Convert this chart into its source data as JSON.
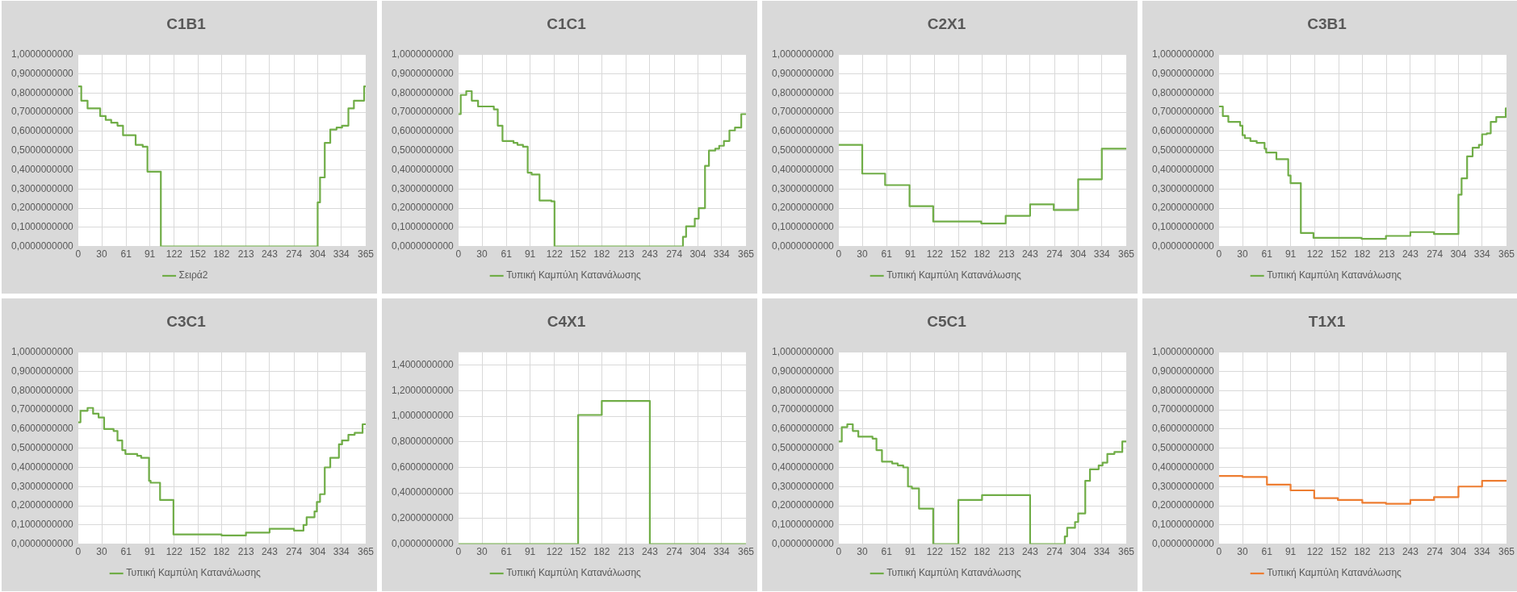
{
  "chart_data": [
    {
      "type": "step",
      "title": "C1B1",
      "legend": "bottom",
      "grid": true,
      "xlim": [
        0,
        365
      ],
      "xticks": [
        0,
        30,
        61,
        91,
        122,
        152,
        182,
        213,
        243,
        274,
        304,
        334,
        365
      ],
      "ylim": [
        0,
        1
      ],
      "yticks": [
        {
          "value": 0,
          "label": "0,0000000000"
        },
        {
          "value": 0.1,
          "label": "0,1000000000"
        },
        {
          "value": 0.2,
          "label": "0,2000000000"
        },
        {
          "value": 0.3,
          "label": "0,3000000000"
        },
        {
          "value": 0.4,
          "label": "0,4000000000"
        },
        {
          "value": 0.5,
          "label": "0,5000000000"
        },
        {
          "value": 0.6,
          "label": "0,6000000000"
        },
        {
          "value": 0.7,
          "label": "0,7000000000"
        },
        {
          "value": 0.8,
          "label": "0,8000000000"
        },
        {
          "value": 0.9,
          "label": "0,9000000000"
        },
        {
          "value": 1,
          "label": "1,0000000000"
        }
      ],
      "series": [
        {
          "name": "Σειρά2",
          "color": "#70ad47",
          "x": [
            0,
            4,
            12,
            28,
            35,
            42,
            50,
            57,
            73,
            82,
            88,
            105,
            304,
            307,
            313,
            320,
            328,
            335,
            343,
            350,
            363,
            365
          ],
          "values": [
            0.835,
            0.76,
            0.72,
            0.68,
            0.66,
            0.645,
            0.63,
            0.58,
            0.53,
            0.52,
            0.39,
            0,
            0.23,
            0.36,
            0.54,
            0.61,
            0.62,
            0.63,
            0.72,
            0.76,
            0.835,
            0.835
          ]
        }
      ]
    },
    {
      "type": "step",
      "title": "C1C1",
      "legend": "bottom",
      "grid": true,
      "xlim": [
        0,
        365
      ],
      "xticks": [
        0,
        30,
        61,
        91,
        122,
        152,
        182,
        213,
        243,
        274,
        304,
        334,
        365
      ],
      "ylim": [
        0,
        1
      ],
      "yticks": [
        {
          "value": 0,
          "label": "0,0000000000"
        },
        {
          "value": 0.1,
          "label": "0,1000000000"
        },
        {
          "value": 0.2,
          "label": "0,2000000000"
        },
        {
          "value": 0.3,
          "label": "0,3000000000"
        },
        {
          "value": 0.4,
          "label": "0,4000000000"
        },
        {
          "value": 0.5,
          "label": "0,5000000000"
        },
        {
          "value": 0.6,
          "label": "0,6000000000"
        },
        {
          "value": 0.7,
          "label": "0,7000000000"
        },
        {
          "value": 0.8,
          "label": "0,8000000000"
        },
        {
          "value": 0.9,
          "label": "0,9000000000"
        },
        {
          "value": 1,
          "label": "1,0000000000"
        }
      ],
      "series": [
        {
          "name": "Τυπική Καμπύλη Κατανάλωσης",
          "color": "#70ad47",
          "x": [
            0,
            3,
            10,
            17,
            25,
            45,
            50,
            56,
            70,
            75,
            82,
            88,
            93,
            103,
            118,
            122,
            285,
            289,
            300,
            305,
            313,
            318,
            326,
            331,
            337,
            344,
            351,
            359,
            365
          ],
          "values": [
            0.69,
            0.79,
            0.81,
            0.76,
            0.73,
            0.715,
            0.63,
            0.55,
            0.54,
            0.53,
            0.52,
            0.385,
            0.375,
            0.24,
            0.235,
            0,
            0.05,
            0.105,
            0.145,
            0.2,
            0.42,
            0.5,
            0.51,
            0.525,
            0.55,
            0.605,
            0.62,
            0.69,
            0.69
          ]
        }
      ]
    },
    {
      "type": "step",
      "title": "C2X1",
      "legend": "bottom",
      "grid": true,
      "xlim": [
        0,
        365
      ],
      "xticks": [
        0,
        30,
        61,
        91,
        122,
        152,
        182,
        213,
        243,
        274,
        304,
        334,
        365
      ],
      "ylim": [
        0,
        1
      ],
      "yticks": [
        {
          "value": 0,
          "label": "0,0000000000"
        },
        {
          "value": 0.1,
          "label": "0,1000000000"
        },
        {
          "value": 0.2,
          "label": "0,2000000000"
        },
        {
          "value": 0.3,
          "label": "0,3000000000"
        },
        {
          "value": 0.4,
          "label": "0,4000000000"
        },
        {
          "value": 0.5,
          "label": "0,5000000000"
        },
        {
          "value": 0.6,
          "label": "0,6000000000"
        },
        {
          "value": 0.7,
          "label": "0,7000000000"
        },
        {
          "value": 0.8,
          "label": "0,8000000000"
        },
        {
          "value": 0.9,
          "label": "0,9000000000"
        },
        {
          "value": 1,
          "label": "1,0000000000"
        }
      ],
      "series": [
        {
          "name": "Τυπική Καμπύλη Κατανάλωσης",
          "color": "#70ad47",
          "x": [
            0,
            30,
            59,
            90,
            120,
            181,
            212,
            243,
            273,
            304,
            334,
            365
          ],
          "values": [
            0.53,
            0.38,
            0.32,
            0.21,
            0.13,
            0.12,
            0.16,
            0.22,
            0.19,
            0.35,
            0.51,
            0.51
          ]
        }
      ]
    },
    {
      "type": "step",
      "title": "C3B1",
      "legend": "bottom",
      "grid": true,
      "xlim": [
        0,
        365
      ],
      "xticks": [
        0,
        30,
        61,
        91,
        122,
        152,
        182,
        213,
        243,
        274,
        304,
        334,
        365
      ],
      "ylim": [
        0,
        1
      ],
      "yticks": [
        {
          "value": 0,
          "label": "0,0000000000"
        },
        {
          "value": 0.1,
          "label": "0,1000000000"
        },
        {
          "value": 0.2,
          "label": "0,2000000000"
        },
        {
          "value": 0.3,
          "label": "0,3000000000"
        },
        {
          "value": 0.4,
          "label": "0,4000000000"
        },
        {
          "value": 0.5,
          "label": "0,5000000000"
        },
        {
          "value": 0.6,
          "label": "0,6000000000"
        },
        {
          "value": 0.7,
          "label": "0,7000000000"
        },
        {
          "value": 0.8,
          "label": "0,8000000000"
        },
        {
          "value": 0.9,
          "label": "0,9000000000"
        },
        {
          "value": 1,
          "label": "1,0000000000"
        }
      ],
      "series": [
        {
          "name": "Τυπική Καμπύλη Κατανάλωσης",
          "color": "#70ad47",
          "x": [
            0,
            5,
            12,
            27,
            30,
            33,
            40,
            48,
            58,
            60,
            73,
            88,
            91,
            104,
            120,
            181,
            212,
            243,
            273,
            304,
            308,
            315,
            322,
            330,
            334,
            340,
            345,
            352,
            364,
            365
          ],
          "values": [
            0.73,
            0.68,
            0.65,
            0.63,
            0.58,
            0.565,
            0.55,
            0.54,
            0.51,
            0.49,
            0.455,
            0.37,
            0.33,
            0.07,
            0.045,
            0.04,
            0.055,
            0.075,
            0.065,
            0.27,
            0.355,
            0.47,
            0.515,
            0.53,
            0.585,
            0.59,
            0.65,
            0.675,
            0.72,
            0.72
          ]
        }
      ]
    },
    {
      "type": "step",
      "title": "C3C1",
      "legend": "bottom",
      "grid": true,
      "xlim": [
        0,
        365
      ],
      "xticks": [
        0,
        30,
        61,
        91,
        122,
        152,
        182,
        213,
        243,
        274,
        304,
        334,
        365
      ],
      "ylim": [
        0,
        1
      ],
      "yticks": [
        {
          "value": 0,
          "label": "0,0000000000"
        },
        {
          "value": 0.1,
          "label": "0,1000000000"
        },
        {
          "value": 0.2,
          "label": "0,2000000000"
        },
        {
          "value": 0.3,
          "label": "0,3000000000"
        },
        {
          "value": 0.4,
          "label": "0,4000000000"
        },
        {
          "value": 0.5,
          "label": "0,5000000000"
        },
        {
          "value": 0.6,
          "label": "0,6000000000"
        },
        {
          "value": 0.7,
          "label": "0,7000000000"
        },
        {
          "value": 0.8,
          "label": "0,8000000000"
        },
        {
          "value": 0.9,
          "label": "0,9000000000"
        },
        {
          "value": 1,
          "label": "1,0000000000"
        }
      ],
      "series": [
        {
          "name": "Τυπική Καμπύλη Κατανάλωσης",
          "color": "#70ad47",
          "x": [
            0,
            3,
            12,
            19,
            26,
            33,
            45,
            50,
            56,
            60,
            75,
            80,
            90,
            92,
            104,
            121,
            182,
            213,
            243,
            274,
            286,
            290,
            300,
            303,
            307,
            313,
            320,
            331,
            335,
            343,
            351,
            361,
            365
          ],
          "values": [
            0.635,
            0.695,
            0.71,
            0.68,
            0.66,
            0.6,
            0.59,
            0.54,
            0.49,
            0.47,
            0.46,
            0.45,
            0.33,
            0.32,
            0.23,
            0.05,
            0.045,
            0.06,
            0.08,
            0.07,
            0.1,
            0.14,
            0.17,
            0.22,
            0.26,
            0.4,
            0.45,
            0.52,
            0.54,
            0.57,
            0.58,
            0.625,
            0.625
          ]
        }
      ]
    },
    {
      "type": "step",
      "title": "C4X1",
      "legend": "bottom",
      "grid": true,
      "xlim": [
        0,
        365
      ],
      "xticks": [
        0,
        30,
        61,
        91,
        122,
        152,
        182,
        213,
        243,
        274,
        304,
        334,
        365
      ],
      "ylim": [
        0,
        1.5
      ],
      "yticks": [
        {
          "value": 0,
          "label": "0,0000000000"
        },
        {
          "value": 0.2,
          "label": "0,2000000000"
        },
        {
          "value": 0.4,
          "label": "0,4000000000"
        },
        {
          "value": 0.6,
          "label": "0,6000000000"
        },
        {
          "value": 0.8,
          "label": "0,8000000000"
        },
        {
          "value": 1,
          "label": "1,0000000000"
        },
        {
          "value": 1.2,
          "label": "1,2000000000"
        },
        {
          "value": 1.4,
          "label": "1,4000000000"
        }
      ],
      "series": [
        {
          "name": "Τυπική Καμπύλη Κατανάλωσης",
          "color": "#70ad47",
          "x": [
            0,
            152,
            182,
            243,
            365
          ],
          "values": [
            0,
            1.01,
            1.12,
            0,
            0
          ]
        }
      ]
    },
    {
      "type": "step",
      "title": "C5C1",
      "legend": "bottom",
      "grid": true,
      "xlim": [
        0,
        365
      ],
      "xticks": [
        0,
        30,
        61,
        91,
        122,
        152,
        182,
        213,
        243,
        274,
        304,
        334,
        365
      ],
      "ylim": [
        0,
        1
      ],
      "yticks": [
        {
          "value": 0,
          "label": "0,0000000000"
        },
        {
          "value": 0.1,
          "label": "0,1000000000"
        },
        {
          "value": 0.2,
          "label": "0,2000000000"
        },
        {
          "value": 0.3,
          "label": "0,3000000000"
        },
        {
          "value": 0.4,
          "label": "0,4000000000"
        },
        {
          "value": 0.5,
          "label": "0,5000000000"
        },
        {
          "value": 0.6,
          "label": "0,6000000000"
        },
        {
          "value": 0.7,
          "label": "0,7000000000"
        },
        {
          "value": 0.8,
          "label": "0,8000000000"
        },
        {
          "value": 0.9,
          "label": "0,9000000000"
        },
        {
          "value": 1,
          "label": "1,0000000000"
        }
      ],
      "series": [
        {
          "name": "Τυπική Καμπύλη Κατανάλωσης",
          "color": "#70ad47",
          "x": [
            0,
            4,
            11,
            18,
            25,
            43,
            48,
            55,
            68,
            75,
            82,
            88,
            93,
            102,
            120,
            152,
            182,
            243,
            287,
            290,
            300,
            304,
            313,
            319,
            330,
            335,
            341,
            350,
            360,
            365
          ],
          "values": [
            0.535,
            0.61,
            0.625,
            0.59,
            0.56,
            0.55,
            0.49,
            0.43,
            0.42,
            0.41,
            0.4,
            0.3,
            0.29,
            0.185,
            0,
            0.23,
            0.255,
            0,
            0.04,
            0.085,
            0.115,
            0.16,
            0.33,
            0.39,
            0.41,
            0.425,
            0.47,
            0.48,
            0.535,
            0.535
          ]
        }
      ]
    },
    {
      "type": "step",
      "title": "T1X1",
      "legend": "bottom",
      "grid": true,
      "xlim": [
        0,
        365
      ],
      "xticks": [
        0,
        30,
        61,
        91,
        122,
        152,
        182,
        213,
        243,
        274,
        304,
        334,
        365
      ],
      "ylim": [
        0,
        1
      ],
      "yticks": [
        {
          "value": 0,
          "label": "0,0000000000"
        },
        {
          "value": 0.1,
          "label": "0,1000000000"
        },
        {
          "value": 0.2,
          "label": "0,2000000000"
        },
        {
          "value": 0.3,
          "label": "0,3000000000"
        },
        {
          "value": 0.4,
          "label": "0,4000000000"
        },
        {
          "value": 0.5,
          "label": "0,5000000000"
        },
        {
          "value": 0.6,
          "label": "0,6000000000"
        },
        {
          "value": 0.7,
          "label": "0,7000000000"
        },
        {
          "value": 0.8,
          "label": "0,8000000000"
        },
        {
          "value": 0.9,
          "label": "0,9000000000"
        },
        {
          "value": 1,
          "label": "1,0000000000"
        }
      ],
      "series": [
        {
          "name": "Τυπική Καμπύλη Κατανάλωσης",
          "color": "#ed7d31",
          "x": [
            0,
            30,
            61,
            91,
            121,
            151,
            182,
            212,
            243,
            273,
            304,
            334,
            365
          ],
          "values": [
            0.355,
            0.35,
            0.31,
            0.28,
            0.24,
            0.23,
            0.215,
            0.21,
            0.23,
            0.245,
            0.3,
            0.33,
            0.33
          ]
        }
      ]
    }
  ]
}
